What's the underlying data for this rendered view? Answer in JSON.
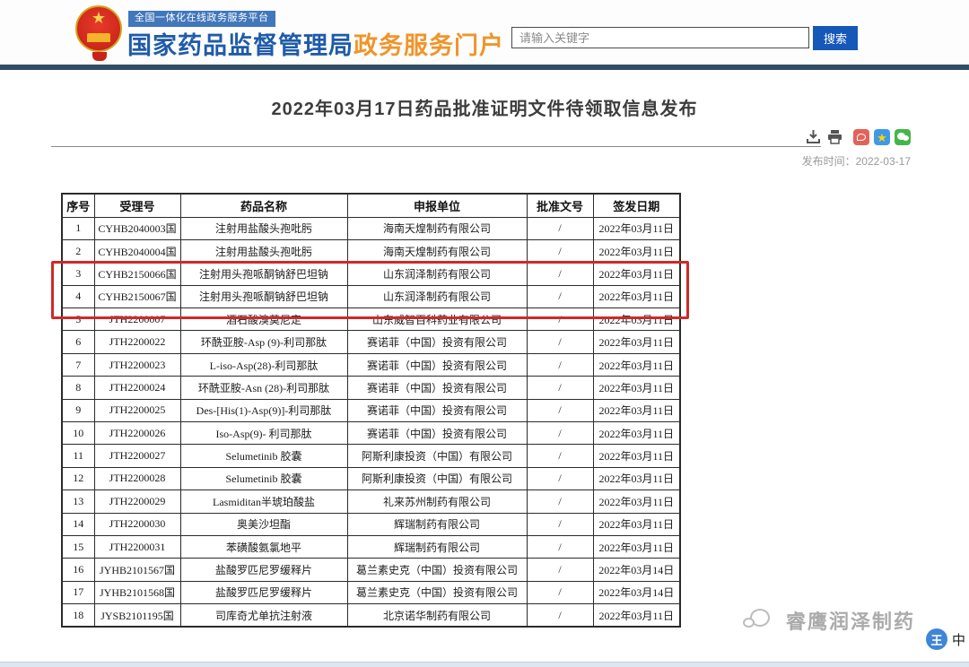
{
  "header": {
    "platform_badge": "全国一体化在线政务服务平台",
    "site_title_primary": "国家药品监督管理局",
    "site_title_secondary": "政务服务门户",
    "search_placeholder": "请输入关键字",
    "search_button": "搜索"
  },
  "article": {
    "title": "2022年03月17日药品批准证明文件待领取信息发布",
    "publish_label": "发布时间：",
    "publish_date": "2022-03-17",
    "toolbar_icons": [
      "download-icon",
      "print-icon",
      "weibo-share-icon",
      "qzone-share-icon",
      "wechat-share-icon"
    ]
  },
  "table": {
    "columns": [
      "序号",
      "受理号",
      "药品名称",
      "申报单位",
      "批准文号",
      "签发日期"
    ],
    "rows": [
      [
        "1",
        "CYHB2040003国",
        "注射用盐酸头孢吡肟",
        "海南天煌制药有限公司",
        "/",
        "2022年03月11日"
      ],
      [
        "2",
        "CYHB2040004国",
        "注射用盐酸头孢吡肟",
        "海南天煌制药有限公司",
        "/",
        "2022年03月11日"
      ],
      [
        "3",
        "CYHB2150066国",
        "注射用头孢哌酮钠舒巴坦钠",
        "山东润泽制药有限公司",
        "/",
        "2022年03月11日"
      ],
      [
        "4",
        "CYHB2150067国",
        "注射用头孢哌酮钠舒巴坦钠",
        "山东润泽制药有限公司",
        "/",
        "2022年03月11日"
      ],
      [
        "5",
        "JTH2200007",
        "酒石酸溴莫尼定",
        "山东威智百科药业有限公司",
        "/",
        "2022年03月11日"
      ],
      [
        "6",
        "JTH2200022",
        "环酰亚胺-Asp (9)-利司那肽",
        "赛诺菲（中国）投资有限公司",
        "/",
        "2022年03月11日"
      ],
      [
        "7",
        "JTH2200023",
        "L-iso-Asp(28)-利司那肽",
        "赛诺菲（中国）投资有限公司",
        "/",
        "2022年03月11日"
      ],
      [
        "8",
        "JTH2200024",
        "环酰亚胺-Asn (28)-利司那肽",
        "赛诺菲（中国）投资有限公司",
        "/",
        "2022年03月11日"
      ],
      [
        "9",
        "JTH2200025",
        "Des-[His(1)-Asp(9)]-利司那肽",
        "赛诺菲（中国）投资有限公司",
        "/",
        "2022年03月11日"
      ],
      [
        "10",
        "JTH2200026",
        "Iso-Asp(9)- 利司那肽",
        "赛诺菲（中国）投资有限公司",
        "/",
        "2022年03月11日"
      ],
      [
        "11",
        "JTH2200027",
        "Selumetinib 胶囊",
        "阿斯利康投资（中国）有限公司",
        "/",
        "2022年03月11日"
      ],
      [
        "12",
        "JTH2200028",
        "Selumetinib 胶囊",
        "阿斯利康投资（中国）有限公司",
        "/",
        "2022年03月11日"
      ],
      [
        "13",
        "JTH2200029",
        "Lasmiditan半琥珀酸盐",
        "礼来苏州制药有限公司",
        "/",
        "2022年03月11日"
      ],
      [
        "14",
        "JTH2200030",
        "奥美沙坦酯",
        "辉瑞制药有限公司",
        "/",
        "2022年03月11日"
      ],
      [
        "15",
        "JTH2200031",
        "苯磺酸氨氯地平",
        "辉瑞制药有限公司",
        "/",
        "2022年03月11日"
      ],
      [
        "16",
        "JYHB2101567国",
        "盐酸罗匹尼罗缓释片",
        "葛兰素史克（中国）投资有限公司",
        "/",
        "2022年03月14日"
      ],
      [
        "17",
        "JYHB2101568国",
        "盐酸罗匹尼罗缓释片",
        "葛兰素史克（中国）投资有限公司",
        "/",
        "2022年03月14日"
      ],
      [
        "18",
        "JYSB2101195国",
        "司库奇尤单抗注射液",
        "北京诺华制药有限公司",
        "/",
        "2022年03月11日"
      ]
    ],
    "highlighted_row_numbers": [
      "3",
      "4"
    ]
  },
  "watermark": {
    "text": "睿鹰润泽制药"
  },
  "ime_widget": {
    "circle_label": "王",
    "mode_label": "中"
  },
  "colors": {
    "header_bar": "#2e4d64",
    "badge_blue": "#4177bb",
    "title_blue": "#1f5ba9",
    "title_orange": "#f0942a",
    "search_button_blue": "#1558b8",
    "highlight_red": "#ce2a28",
    "weibo_red": "#e2635a",
    "qzone_blue": "#3f9ae6",
    "wechat_green": "#46b549"
  }
}
